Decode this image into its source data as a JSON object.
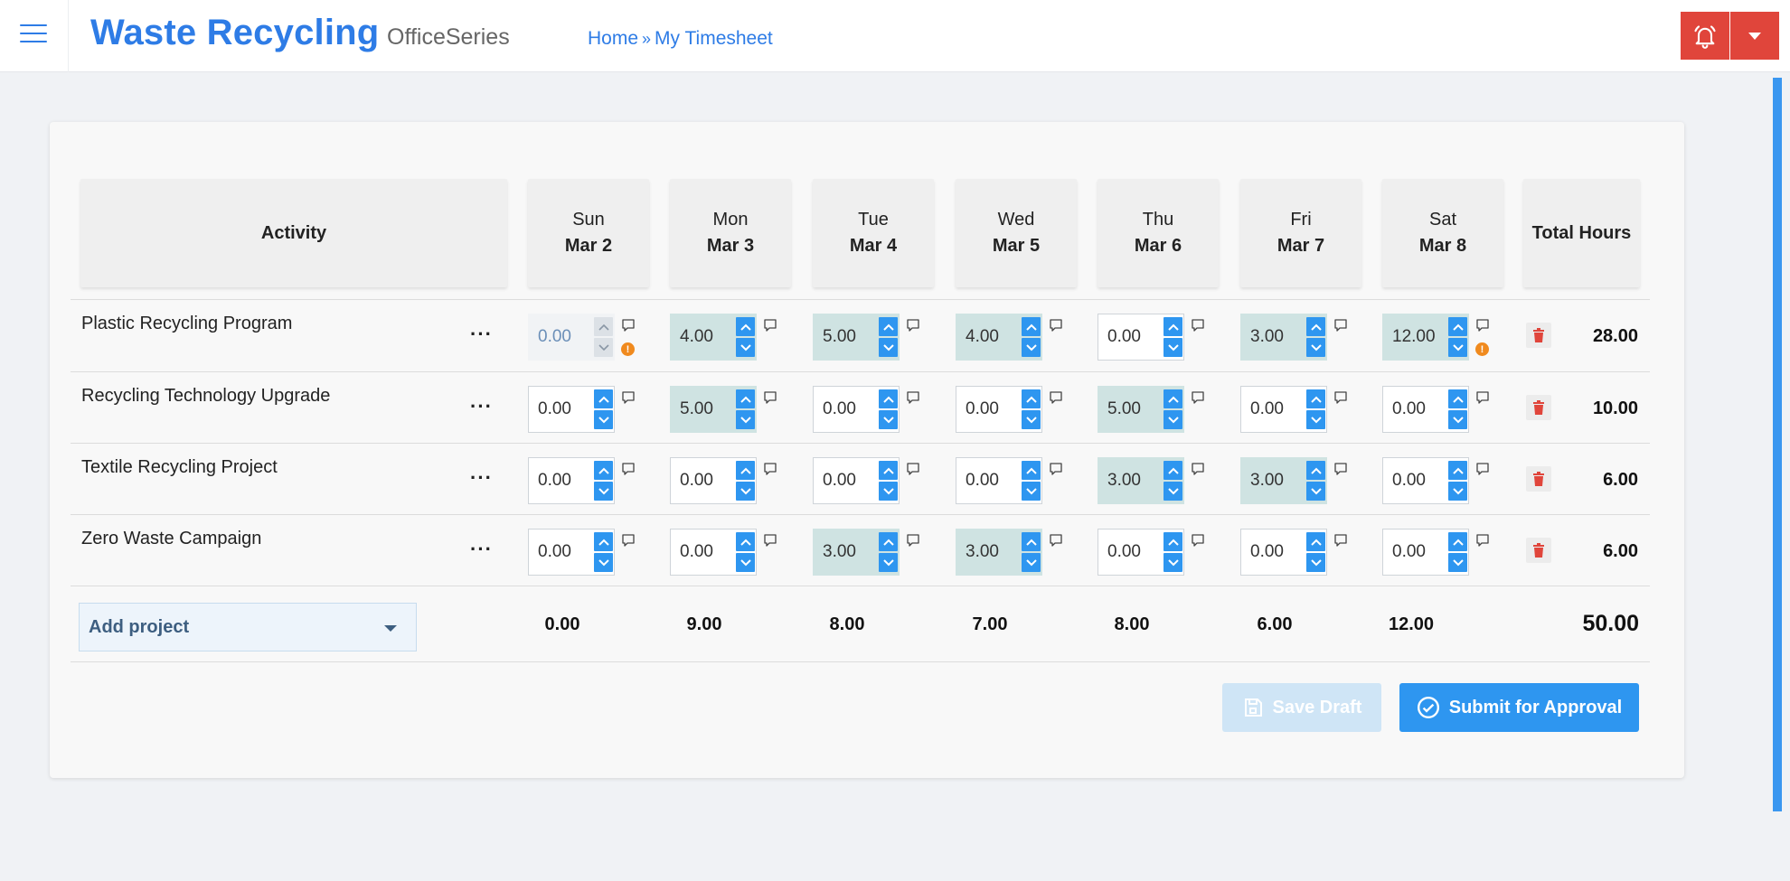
{
  "header": {
    "brand": "Waste Recycling",
    "product": "OfficeSeries",
    "breadcrumb": {
      "home": "Home",
      "separator": "»",
      "current": "My Timesheet"
    },
    "accent": "#2e7ce6",
    "alert_color": "#e0453b"
  },
  "timesheet": {
    "activity_header": "Activity",
    "total_header": "Total Hours",
    "days": [
      {
        "dow": "Sun",
        "date": "Mar 2"
      },
      {
        "dow": "Mon",
        "date": "Mar 3"
      },
      {
        "dow": "Tue",
        "date": "Mar 4"
      },
      {
        "dow": "Wed",
        "date": "Mar 5"
      },
      {
        "dow": "Thu",
        "date": "Mar 6"
      },
      {
        "dow": "Fri",
        "date": "Mar 7"
      },
      {
        "dow": "Sat",
        "date": "Mar 8"
      }
    ],
    "rows": [
      {
        "name": "Plastic Recycling Program",
        "more": "···",
        "hours": [
          "0.00",
          "4.00",
          "5.00",
          "4.00",
          "0.00",
          "3.00",
          "12.00"
        ],
        "total": "28.00"
      },
      {
        "name": "Recycling Technology Upgrade",
        "more": "···",
        "hours": [
          "0.00",
          "5.00",
          "0.00",
          "0.00",
          "5.00",
          "0.00",
          "0.00"
        ],
        "total": "10.00"
      },
      {
        "name": "Textile Recycling Project",
        "more": "···",
        "hours": [
          "0.00",
          "0.00",
          "0.00",
          "0.00",
          "3.00",
          "3.00",
          "0.00"
        ],
        "total": "6.00"
      },
      {
        "name": "Zero Waste Campaign",
        "more": "···",
        "hours": [
          "0.00",
          "0.00",
          "3.00",
          "3.00",
          "0.00",
          "0.00",
          "0.00"
        ],
        "total": "6.00"
      }
    ],
    "day_totals": [
      "0.00",
      "9.00",
      "8.00",
      "7.00",
      "8.00",
      "6.00",
      "12.00"
    ],
    "grand_total": "50.00",
    "add_project_label": "Add project",
    "info_mark": "!"
  },
  "actions": {
    "save_draft": "Save Draft",
    "submit": "Submit for Approval"
  }
}
